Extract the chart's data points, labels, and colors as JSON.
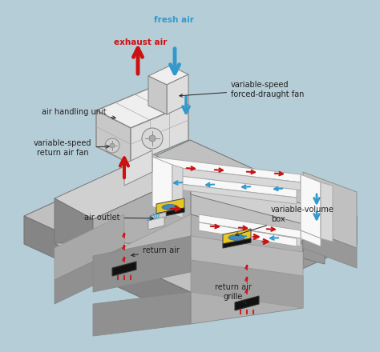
{
  "bg_color": "#b5cdd6",
  "labels": {
    "fresh_air": "fresh air",
    "exhaust_air": "exhaust air",
    "air_handling_unit": "air handling unit",
    "variable_speed_forced": "variable-speed\nforced-draught fan",
    "variable_speed_return": "variable-speed\nreturn air fan",
    "air_outlet": "air outlet",
    "return_air": "return air",
    "variable_volume_box": "variable-volume\nbox",
    "return_air_grille": "return air\ngrille"
  },
  "colors": {
    "fresh_air_arrow": "#3399cc",
    "exhaust_air_arrow": "#cc1111",
    "exhaust_air_text": "#cc1111",
    "supply_arrow": "#cc1111",
    "return_arrow": "#3399cc",
    "duct_white": "#f8f8f8",
    "duct_grey": "#d8d8d8",
    "duct_edge": "#aaaaaa",
    "bld_top": "#b5b5b5",
    "bld_left": "#858585",
    "bld_right": "#999999",
    "bld_edge": "#777777",
    "room_floor": "#c8c8c8",
    "room_wall": "#909090",
    "room_inner": "#b8b8b8",
    "ahu_top": "#efefef",
    "ahu_left": "#c8c8c8",
    "ahu_right": "#dedede",
    "ahu_edge": "#888888",
    "vvbox_yellow": "#e8c820",
    "vvbox_black": "#111111",
    "grille_black": "#111111",
    "label_color": "#222222"
  }
}
